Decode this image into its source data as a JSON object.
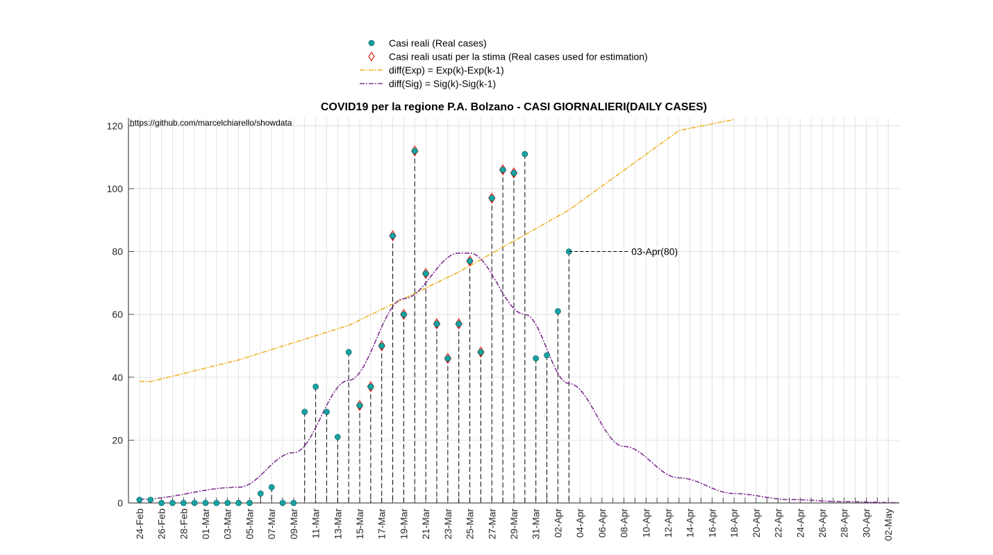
{
  "chart_data": {
    "type": "scatter",
    "title": "COVID19 per la regione P.A. Bolzano - CASI GIORNALIERI(DAILY CASES)",
    "source_note": "https://github.com/marcelchiarello/showdata",
    "xlabel": "",
    "ylabel": "",
    "ylim": [
      0,
      120
    ],
    "yticks": [
      0,
      20,
      40,
      60,
      80,
      100,
      120
    ],
    "xticks": [
      "24-Feb",
      "26-Feb",
      "28-Feb",
      "01-Mar",
      "03-Mar",
      "05-Mar",
      "07-Mar",
      "09-Mar",
      "11-Mar",
      "13-Mar",
      "15-Mar",
      "17-Mar",
      "19-Mar",
      "21-Mar",
      "23-Mar",
      "25-Mar",
      "27-Mar",
      "29-Mar",
      "31-Mar",
      "02-Apr",
      "04-Apr",
      "06-Apr",
      "08-Apr",
      "10-Apr",
      "12-Apr",
      "14-Apr",
      "16-Apr",
      "18-Apr",
      "20-Apr",
      "22-Apr",
      "24-Apr",
      "26-Apr",
      "28-Apr",
      "30-Apr",
      "02-May"
    ],
    "grid": true,
    "legend_placement": "top-center (outside)",
    "x_start_date": "24-Feb",
    "x_end_date": "03-May",
    "legend": [
      "Casi reali (Real cases)",
      "Casi reali usati per la stima (Real cases used for estimation)",
      "diff(Exp) = Exp(k)-Exp(k-1)",
      "diff(Sig) = Sig(k)-Sig(k-1)"
    ],
    "colors": {
      "real_cases": "#17a3a3",
      "estimation_marker": "#e8231c",
      "exp_curve": "#edb120",
      "sig_curve": "#7e2f8e",
      "grid": "#dcdcdc"
    },
    "series": [
      {
        "name": "Casi reali (Real cases)",
        "x": [
          "24-Feb",
          "25-Feb",
          "26-Feb",
          "27-Feb",
          "28-Feb",
          "29-Feb",
          "01-Mar",
          "02-Mar",
          "03-Mar",
          "04-Mar",
          "05-Mar",
          "06-Mar",
          "07-Mar",
          "08-Mar",
          "09-Mar",
          "10-Mar",
          "11-Mar",
          "12-Mar",
          "13-Mar",
          "14-Mar",
          "15-Mar",
          "16-Mar",
          "17-Mar",
          "18-Mar",
          "19-Mar",
          "20-Mar",
          "21-Mar",
          "22-Mar",
          "23-Mar",
          "24-Mar",
          "25-Mar",
          "26-Mar",
          "27-Mar",
          "28-Mar",
          "29-Mar",
          "30-Mar",
          "31-Mar",
          "01-Apr",
          "02-Apr",
          "03-Apr"
        ],
        "values": [
          1,
          1,
          0,
          0,
          0,
          0,
          0,
          0,
          0,
          0,
          0,
          3,
          5,
          0,
          0,
          29,
          37,
          29,
          21,
          48,
          31,
          37,
          50,
          85,
          60,
          112,
          73,
          57,
          46,
          57,
          77,
          48,
          97,
          106,
          105,
          111,
          46,
          47,
          61,
          80
        ]
      },
      {
        "name": "Casi reali usati per la stima (Real cases used for estimation)",
        "x": [
          "15-Mar",
          "16-Mar",
          "17-Mar",
          "18-Mar",
          "19-Mar",
          "20-Mar",
          "21-Mar",
          "22-Mar",
          "23-Mar",
          "24-Mar",
          "25-Mar",
          "26-Mar",
          "27-Mar",
          "28-Mar",
          "29-Mar"
        ],
        "values": [
          31,
          37,
          50,
          85,
          60,
          112,
          73,
          57,
          46,
          57,
          77,
          48,
          97,
          106,
          105
        ]
      },
      {
        "name": "diff(Exp) = Exp(k)-Exp(k-1)",
        "x": [
          "24-Feb",
          "25-Feb",
          "04-Mar",
          "14-Mar",
          "24-Mar",
          "03-Apr",
          "13-Apr",
          "18-Apr"
        ],
        "values": [
          38.7,
          38.6,
          45.5,
          56.5,
          73.5,
          93.2,
          118.5,
          122
        ]
      },
      {
        "name": "diff(Sig) = Sig(k)-Sig(k-1)",
        "x": [
          "24-Feb",
          "04-Mar",
          "09-Mar",
          "14-Mar",
          "19-Mar",
          "24-Mar",
          "25-Mar",
          "30-Mar",
          "03-Apr",
          "08-Apr",
          "13-Apr",
          "18-Apr",
          "23-Apr",
          "28-Apr",
          "03-May"
        ],
        "values": [
          1.2,
          5,
          16,
          39,
          65,
          79.5,
          79.5,
          60,
          38,
          18,
          8,
          3,
          1.1,
          0.4,
          0.1
        ]
      }
    ],
    "annotations": [
      {
        "text": "03-Apr(80)",
        "x": "03-Apr",
        "y": 80
      }
    ]
  }
}
